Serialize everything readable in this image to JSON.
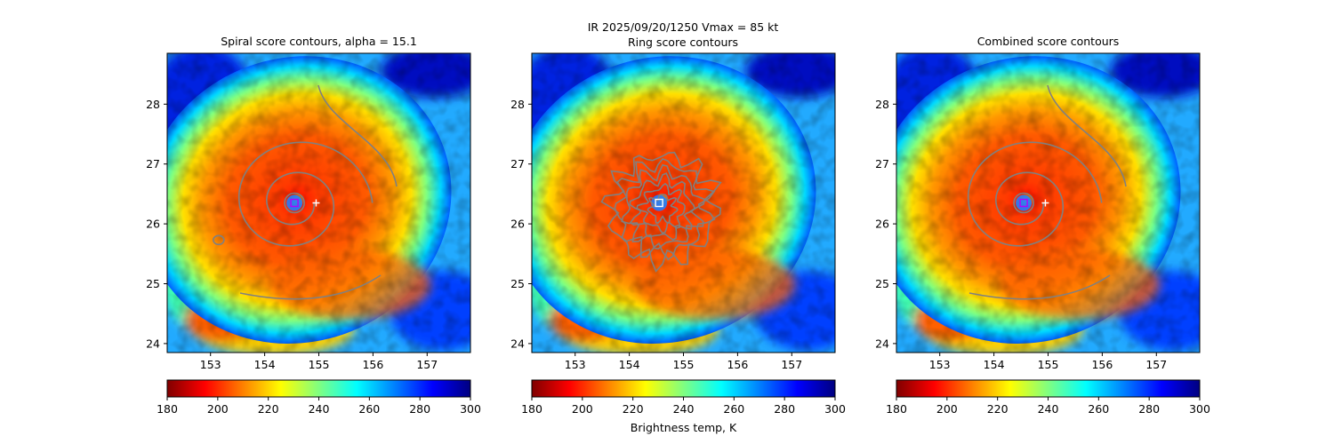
{
  "suptitle_line1": "IR  2025/09/20/1250    Vmax = 85 kt",
  "colorbar": {
    "label": "Brightness temp, K",
    "range": [
      180,
      300
    ],
    "ticks": [
      "180",
      "200",
      "220",
      "240",
      "260",
      "280",
      "300"
    ],
    "colormap": "jet (reversed: dark red = cold, dark blue = warm)",
    "colors": [
      "#800000",
      "#ff0000",
      "#ff8000",
      "#ffff00",
      "#80ff80",
      "#00ffff",
      "#0080ff",
      "#0000ff",
      "#000080"
    ]
  },
  "chart_data": [
    {
      "type": "heatmap",
      "title": "Spiral score contours, alpha = 15.1",
      "xlim": [
        152.2,
        157.8
      ],
      "ylim": [
        23.85,
        28.85
      ],
      "xticks": [
        "153",
        "154",
        "155",
        "156",
        "157"
      ],
      "yticks": [
        "24",
        "25",
        "26",
        "27",
        "28"
      ],
      "contour": "spiral",
      "center_marker": {
        "lon": 154.55,
        "lat": 26.35
      },
      "cross_marker": {
        "lon": 154.95,
        "lat": 26.35
      }
    },
    {
      "type": "heatmap",
      "title": "Ring score contours",
      "xlim": [
        152.2,
        157.8
      ],
      "ylim": [
        23.85,
        28.85
      ],
      "xticks": [
        "153",
        "154",
        "155",
        "156",
        "157"
      ],
      "yticks": [
        "24",
        "25",
        "26",
        "27",
        "28"
      ],
      "contour": "ring",
      "center_marker": {
        "lon": 154.55,
        "lat": 26.35
      }
    },
    {
      "type": "heatmap",
      "title": "Combined score contours",
      "xlim": [
        152.2,
        157.8
      ],
      "ylim": [
        23.85,
        28.85
      ],
      "xticks": [
        "153",
        "154",
        "155",
        "156",
        "157"
      ],
      "yticks": [
        "24",
        "25",
        "26",
        "27",
        "28"
      ],
      "contour": "combined",
      "center_marker": {
        "lon": 154.55,
        "lat": 26.35
      },
      "cross_marker": {
        "lon": 154.95,
        "lat": 26.35
      }
    }
  ]
}
